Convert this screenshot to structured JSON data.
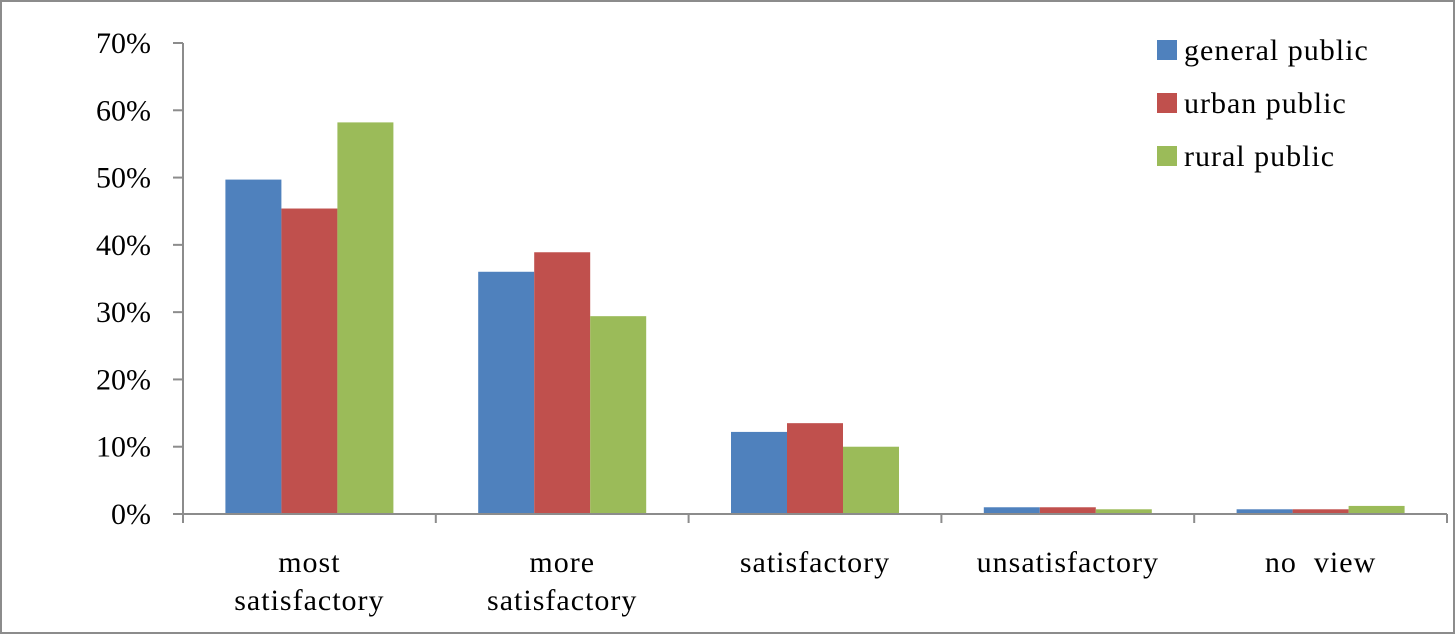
{
  "chart_data": {
    "type": "bar",
    "title": "",
    "xlabel": "",
    "ylabel": "",
    "categories": [
      [
        "most",
        "satisfactory"
      ],
      [
        "more",
        "satisfactory"
      ],
      [
        "satisfactory"
      ],
      [
        "unsatisfactory"
      ],
      [
        "no  view"
      ]
    ],
    "series": [
      {
        "name": "general public",
        "color": "#4f81bd",
        "values": [
          49.7,
          36.0,
          12.2,
          1.0,
          0.7
        ]
      },
      {
        "name": "urban public",
        "color": "#c0504d",
        "values": [
          45.4,
          38.9,
          13.5,
          1.0,
          0.7
        ]
      },
      {
        "name": "rural public",
        "color": "#9bbb59",
        "values": [
          58.2,
          29.4,
          10.0,
          0.7,
          1.2
        ]
      }
    ],
    "ylim": [
      0,
      70
    ],
    "yticks": [
      {
        "value": 0,
        "label": "0%"
      },
      {
        "value": 10,
        "label": "10%"
      },
      {
        "value": 20,
        "label": "20%"
      },
      {
        "value": 30,
        "label": "30%"
      },
      {
        "value": 40,
        "label": "40%"
      },
      {
        "value": 50,
        "label": "50%"
      },
      {
        "value": 60,
        "label": "60%"
      },
      {
        "value": 70,
        "label": "70%"
      }
    ],
    "grid": false,
    "legend_position": "top-right"
  }
}
